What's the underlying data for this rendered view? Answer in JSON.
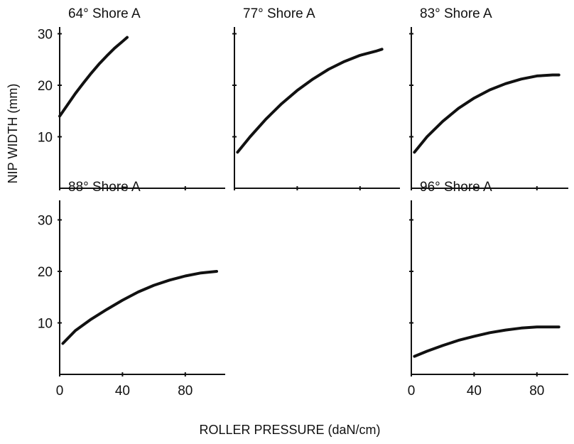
{
  "chart_data": {
    "type": "line",
    "ylabel": "NIP WIDTH (mm)",
    "xlabel": "ROLLER PRESSURE (daN/cm)",
    "line_color": "#111111",
    "xlim": [
      0,
      100
    ],
    "ylim": [
      0,
      32
    ],
    "xticks": [
      "0",
      "40",
      "80"
    ],
    "yticks": [
      "10",
      "20",
      "30"
    ],
    "panels": [
      {
        "title": "64° Shore A",
        "x": [
          0,
          5,
          10,
          15,
          20,
          25,
          30,
          35,
          40,
          43
        ],
        "y": [
          14,
          16.2,
          18.4,
          20.4,
          22.3,
          24.1,
          25.7,
          27.2,
          28.5,
          29.3
        ]
      },
      {
        "title": "77° Shore A",
        "x": [
          2,
          10,
          20,
          30,
          40,
          50,
          60,
          70,
          80,
          90,
          94
        ],
        "y": [
          7,
          10,
          13.4,
          16.4,
          19,
          21.2,
          23.1,
          24.6,
          25.8,
          26.6,
          27
        ]
      },
      {
        "title": "83° Shore A",
        "x": [
          2,
          10,
          20,
          30,
          40,
          50,
          60,
          70,
          80,
          90,
          94
        ],
        "y": [
          7,
          10,
          13,
          15.5,
          17.5,
          19.1,
          20.3,
          21.2,
          21.8,
          22,
          22
        ]
      },
      {
        "title": "88° Shore A",
        "x": [
          2,
          10,
          20,
          30,
          40,
          50,
          60,
          70,
          80,
          90,
          100
        ],
        "y": [
          6,
          8.5,
          10.7,
          12.6,
          14.4,
          16,
          17.3,
          18.3,
          19.1,
          19.7,
          20
        ]
      },
      null,
      {
        "title": "96° Shore A",
        "x": [
          2,
          10,
          20,
          30,
          40,
          50,
          60,
          70,
          80,
          90,
          94
        ],
        "y": [
          3.5,
          4.5,
          5.6,
          6.6,
          7.4,
          8.1,
          8.6,
          9,
          9.2,
          9.2,
          9.2
        ]
      }
    ]
  }
}
